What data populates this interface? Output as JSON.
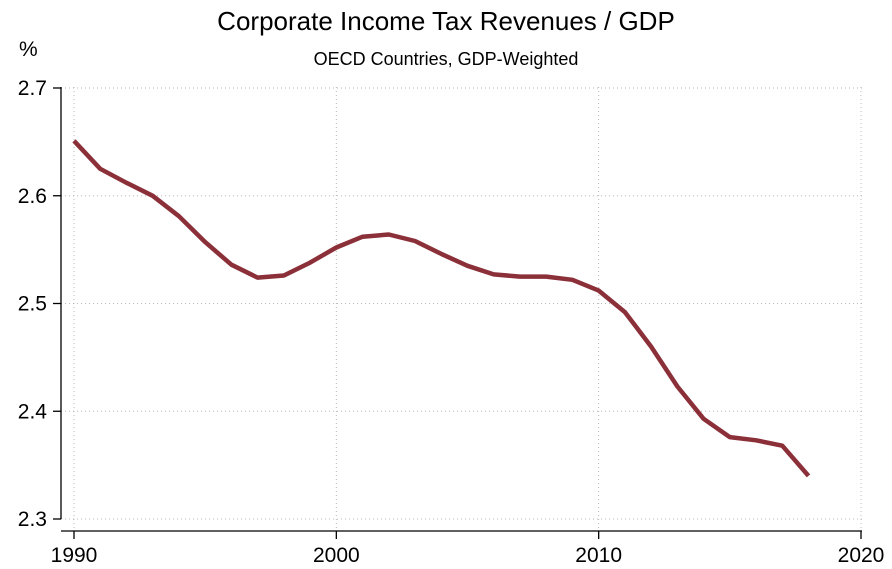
{
  "chart_data": {
    "type": "line",
    "title": "Corporate Income Tax Revenues / GDP",
    "subtitle": "OECD Countries, GDP-Weighted",
    "ylabel": "%",
    "xlabel": "",
    "xlim": [
      1990,
      2020
    ],
    "ylim": [
      2.3,
      2.7
    ],
    "x_ticks": [
      1990,
      2000,
      2010,
      2020
    ],
    "y_ticks": [
      2.3,
      2.4,
      2.5,
      2.6,
      2.7
    ],
    "grid": true,
    "series": [
      {
        "color": "#8b3039",
        "x": [
          1990,
          1991,
          1992,
          1993,
          1994,
          1995,
          1996,
          1997,
          1998,
          1999,
          2000,
          2001,
          2002,
          2003,
          2004,
          2005,
          2006,
          2007,
          2008,
          2009,
          2010,
          2011,
          2012,
          2013,
          2014,
          2015,
          2016,
          2017,
          2018
        ],
        "y": [
          2.651,
          2.625,
          2.612,
          2.6,
          2.581,
          2.557,
          2.536,
          2.524,
          2.526,
          2.538,
          2.552,
          2.562,
          2.564,
          2.558,
          2.546,
          2.535,
          2.527,
          2.525,
          2.525,
          2.522,
          2.512,
          2.492,
          2.46,
          2.423,
          2.393,
          2.376,
          2.373,
          2.368,
          2.34
        ]
      }
    ]
  }
}
